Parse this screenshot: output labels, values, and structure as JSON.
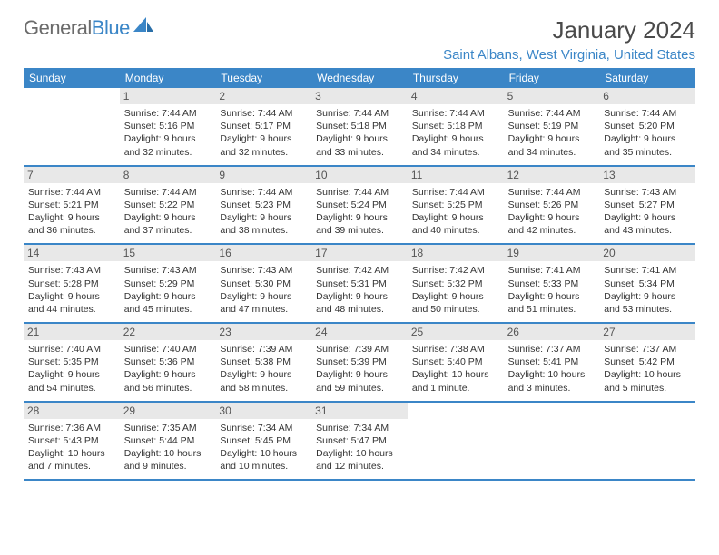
{
  "logo": {
    "part1": "General",
    "part2": "Blue"
  },
  "title": "January 2024",
  "location": "Saint Albans, West Virginia, United States",
  "header_bg": "#3b86c7",
  "dayHeaders": [
    "Sunday",
    "Monday",
    "Tuesday",
    "Wednesday",
    "Thursday",
    "Friday",
    "Saturday"
  ],
  "weeks": [
    [
      null,
      {
        "n": "1",
        "sr": "7:44 AM",
        "ss": "5:16 PM",
        "dl": "9 hours and 32 minutes."
      },
      {
        "n": "2",
        "sr": "7:44 AM",
        "ss": "5:17 PM",
        "dl": "9 hours and 32 minutes."
      },
      {
        "n": "3",
        "sr": "7:44 AM",
        "ss": "5:18 PM",
        "dl": "9 hours and 33 minutes."
      },
      {
        "n": "4",
        "sr": "7:44 AM",
        "ss": "5:18 PM",
        "dl": "9 hours and 34 minutes."
      },
      {
        "n": "5",
        "sr": "7:44 AM",
        "ss": "5:19 PM",
        "dl": "9 hours and 34 minutes."
      },
      {
        "n": "6",
        "sr": "7:44 AM",
        "ss": "5:20 PM",
        "dl": "9 hours and 35 minutes."
      }
    ],
    [
      {
        "n": "7",
        "sr": "7:44 AM",
        "ss": "5:21 PM",
        "dl": "9 hours and 36 minutes."
      },
      {
        "n": "8",
        "sr": "7:44 AM",
        "ss": "5:22 PM",
        "dl": "9 hours and 37 minutes."
      },
      {
        "n": "9",
        "sr": "7:44 AM",
        "ss": "5:23 PM",
        "dl": "9 hours and 38 minutes."
      },
      {
        "n": "10",
        "sr": "7:44 AM",
        "ss": "5:24 PM",
        "dl": "9 hours and 39 minutes."
      },
      {
        "n": "11",
        "sr": "7:44 AM",
        "ss": "5:25 PM",
        "dl": "9 hours and 40 minutes."
      },
      {
        "n": "12",
        "sr": "7:44 AM",
        "ss": "5:26 PM",
        "dl": "9 hours and 42 minutes."
      },
      {
        "n": "13",
        "sr": "7:43 AM",
        "ss": "5:27 PM",
        "dl": "9 hours and 43 minutes."
      }
    ],
    [
      {
        "n": "14",
        "sr": "7:43 AM",
        "ss": "5:28 PM",
        "dl": "9 hours and 44 minutes."
      },
      {
        "n": "15",
        "sr": "7:43 AM",
        "ss": "5:29 PM",
        "dl": "9 hours and 45 minutes."
      },
      {
        "n": "16",
        "sr": "7:43 AM",
        "ss": "5:30 PM",
        "dl": "9 hours and 47 minutes."
      },
      {
        "n": "17",
        "sr": "7:42 AM",
        "ss": "5:31 PM",
        "dl": "9 hours and 48 minutes."
      },
      {
        "n": "18",
        "sr": "7:42 AM",
        "ss": "5:32 PM",
        "dl": "9 hours and 50 minutes."
      },
      {
        "n": "19",
        "sr": "7:41 AM",
        "ss": "5:33 PM",
        "dl": "9 hours and 51 minutes."
      },
      {
        "n": "20",
        "sr": "7:41 AM",
        "ss": "5:34 PM",
        "dl": "9 hours and 53 minutes."
      }
    ],
    [
      {
        "n": "21",
        "sr": "7:40 AM",
        "ss": "5:35 PM",
        "dl": "9 hours and 54 minutes."
      },
      {
        "n": "22",
        "sr": "7:40 AM",
        "ss": "5:36 PM",
        "dl": "9 hours and 56 minutes."
      },
      {
        "n": "23",
        "sr": "7:39 AM",
        "ss": "5:38 PM",
        "dl": "9 hours and 58 minutes."
      },
      {
        "n": "24",
        "sr": "7:39 AM",
        "ss": "5:39 PM",
        "dl": "9 hours and 59 minutes."
      },
      {
        "n": "25",
        "sr": "7:38 AM",
        "ss": "5:40 PM",
        "dl": "10 hours and 1 minute."
      },
      {
        "n": "26",
        "sr": "7:37 AM",
        "ss": "5:41 PM",
        "dl": "10 hours and 3 minutes."
      },
      {
        "n": "27",
        "sr": "7:37 AM",
        "ss": "5:42 PM",
        "dl": "10 hours and 5 minutes."
      }
    ],
    [
      {
        "n": "28",
        "sr": "7:36 AM",
        "ss": "5:43 PM",
        "dl": "10 hours and 7 minutes."
      },
      {
        "n": "29",
        "sr": "7:35 AM",
        "ss": "5:44 PM",
        "dl": "10 hours and 9 minutes."
      },
      {
        "n": "30",
        "sr": "7:34 AM",
        "ss": "5:45 PM",
        "dl": "10 hours and 10 minutes."
      },
      {
        "n": "31",
        "sr": "7:34 AM",
        "ss": "5:47 PM",
        "dl": "10 hours and 12 minutes."
      },
      null,
      null,
      null
    ]
  ],
  "labels": {
    "sunrise": "Sunrise:",
    "sunset": "Sunset:",
    "daylight": "Daylight:"
  }
}
